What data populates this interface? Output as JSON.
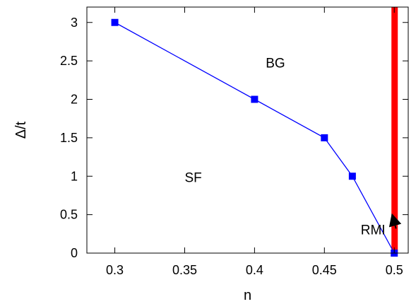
{
  "chart_data": {
    "type": "line",
    "xlabel": "n",
    "ylabel": "Δ/t",
    "xlim": [
      0.28,
      0.51
    ],
    "ylim": [
      0,
      3.2
    ],
    "x_ticks": [
      0.3,
      0.35,
      0.4,
      0.45,
      0.5
    ],
    "x_tick_labels": [
      "0.3",
      "0.35",
      "0.4",
      "0.45",
      "0.5"
    ],
    "y_ticks": [
      0,
      0.5,
      1,
      1.5,
      2,
      2.5,
      3
    ],
    "y_tick_labels": [
      "0",
      "0.5",
      "1",
      "1.5",
      "2",
      "2.5",
      "3"
    ],
    "grid": false,
    "series": [
      {
        "x": [
          0.3,
          0.4,
          0.45,
          0.47,
          0.5
        ],
        "y": [
          3,
          2,
          1.5,
          1,
          0
        ],
        "color": "#0000ff",
        "marker": "square"
      }
    ],
    "vertical_band": {
      "x": 0.5,
      "color": "#ff0000"
    },
    "annotations": [
      {
        "text": "BG",
        "x": 0.408,
        "y": 2.47
      },
      {
        "text": "SF",
        "x": 0.35,
        "y": 0.98
      },
      {
        "text": "RMI",
        "x": 0.476,
        "y": 0.3,
        "arrow_to": [
          0.5,
          0.52
        ]
      }
    ]
  }
}
